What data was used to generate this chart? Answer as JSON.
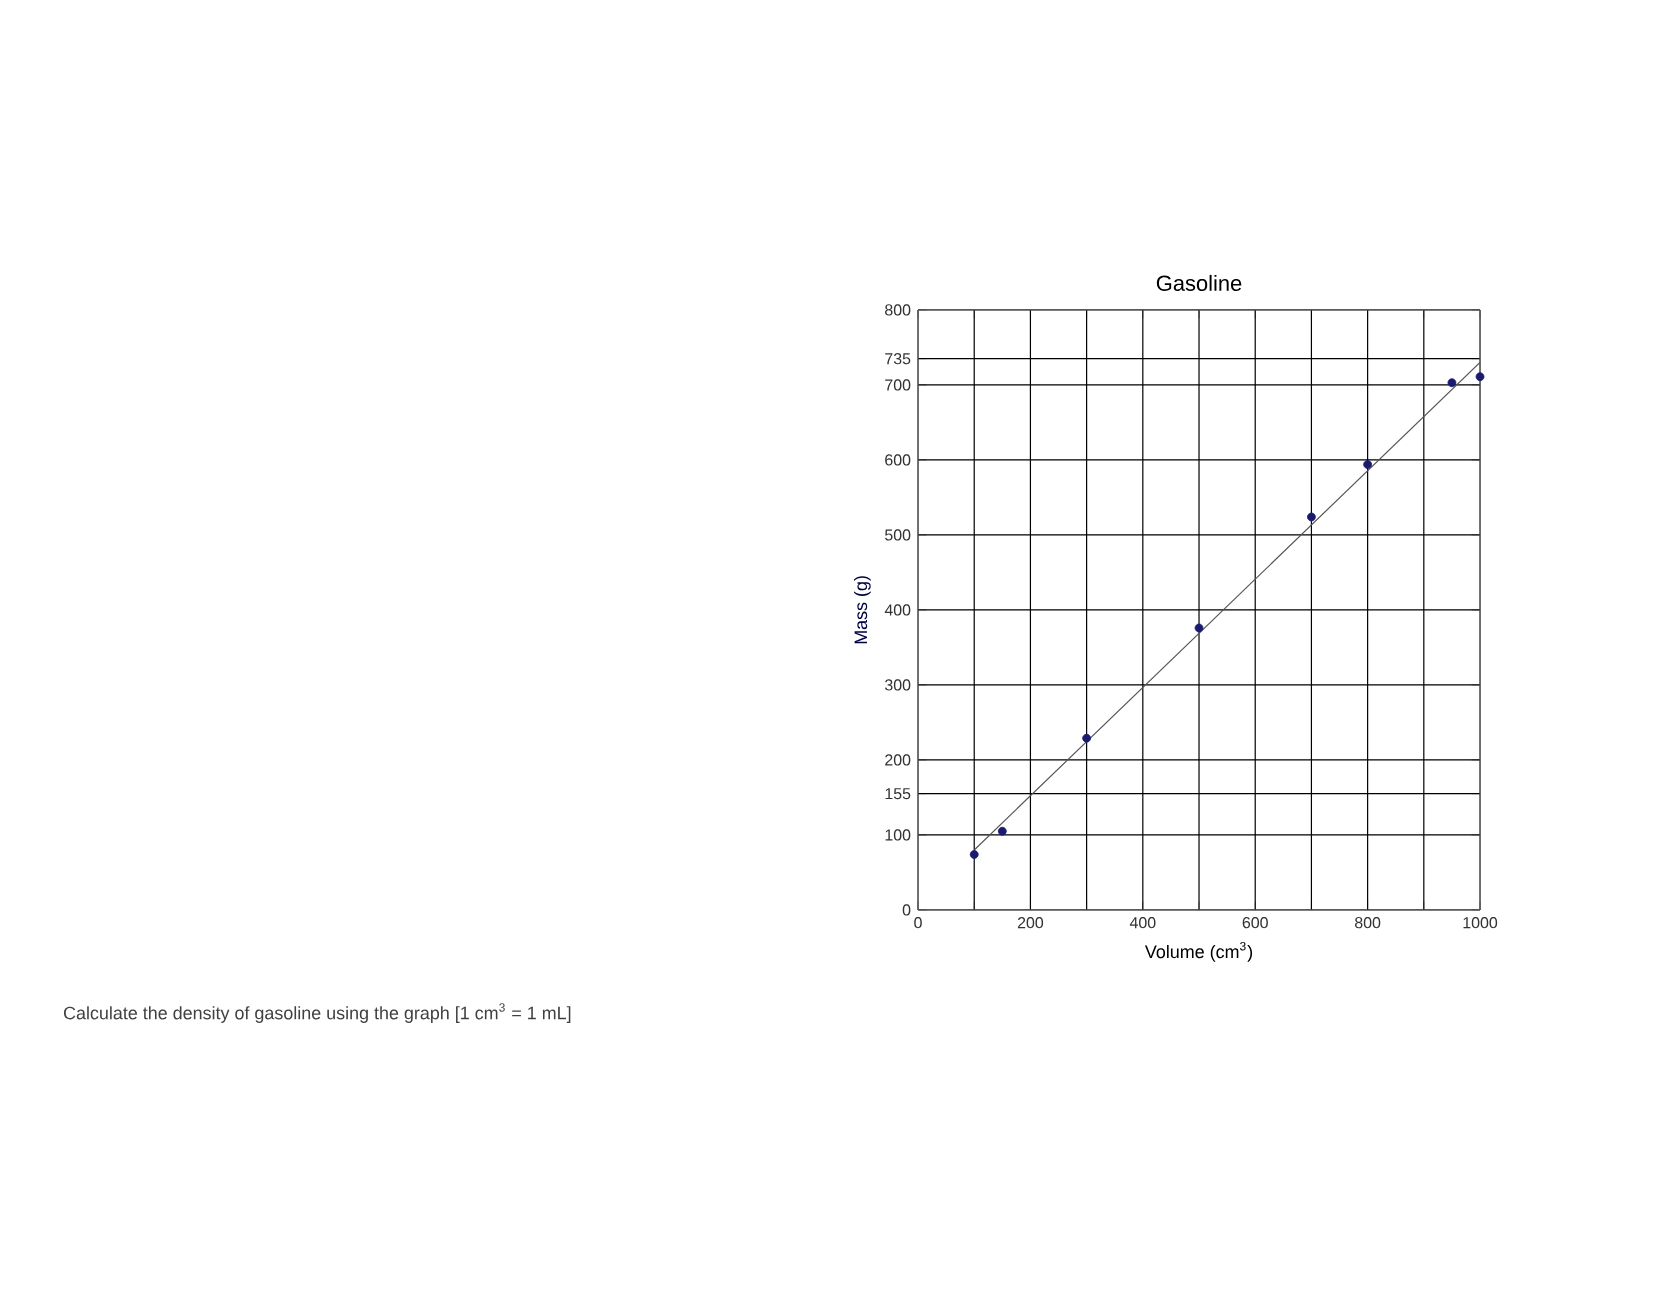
{
  "chart_data": {
    "type": "scatter",
    "title": "Gasoline",
    "xlabel": "Volume (cm$^{3}$)",
    "ylabel": "Mass (g)",
    "annotations": [
      "Calculate the density of gasoline using the graph [1 cm$^{3}$ = 1 mL]"
    ],
    "series": [
      {
        "marker": "circle",
        "color": "#1a1a6e",
        "x": [
          100,
          150,
          300,
          500,
          700,
          800,
          950,
          1000
        ],
        "values": [
          74,
          105,
          229,
          376,
          524,
          594,
          703,
          711
        ]
      },
      {
        "type": "line",
        "marker": "none",
        "color": "#555555",
        "line_style": "solid",
        "x": [
          100,
          1000
        ],
        "values": [
          80,
          730
        ]
      }
    ],
    "xlim": [
      0,
      1000
    ],
    "ylim": [
      0,
      800
    ],
    "xticks": [
      0,
      {
        "value": 100,
        "label": null
      },
      200,
      {
        "value": 300,
        "label": null
      },
      400,
      {
        "value": 500,
        "label": null
      },
      600,
      {
        "value": 700,
        "label": null
      },
      800,
      {
        "value": 900,
        "label": null
      },
      1000
    ],
    "yticks": [
      0,
      100,
      155,
      200,
      300,
      400,
      500,
      600,
      700,
      735,
      800
    ],
    "grid": true
  }
}
